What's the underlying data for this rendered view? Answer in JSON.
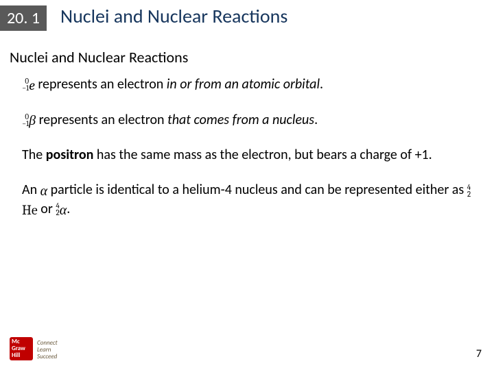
{
  "section": {
    "number": "20. 1",
    "title": "Nuclei and Nuclear Reactions"
  },
  "subheading": "Nuclei and Nuclear Reactions",
  "particles": {
    "electron_orbital": {
      "mass": "0",
      "charge": "−1",
      "symbol": "e",
      "lead": " represents an electron ",
      "tail_italic": "in or from an atomic orbital",
      "period": "."
    },
    "beta": {
      "mass": "0",
      "charge": "−1",
      "symbol": "β",
      "lead": " represents an electron ",
      "tail_italic": "that comes from a nucleus",
      "period": "."
    },
    "positron": {
      "pre": "The ",
      "bold": "positron",
      "post": " has the same mass as the electron, but bears a charge of +1."
    },
    "alpha": {
      "pre": "An ",
      "sym": "α",
      "mid": " particle is identical to a helium-4 nucleus and can be represented either as ",
      "he": {
        "mass": "4",
        "charge": "2",
        "symbol": "He"
      },
      "or": " or ",
      "al": {
        "mass": "4",
        "charge": "2",
        "symbol": "α"
      },
      "period": "."
    }
  },
  "logo": {
    "brand_line1": "Mc",
    "brand_line2": "Graw",
    "brand_line3": "Hill",
    "tag1": "Connect",
    "tag2": "Learn",
    "tag3": "Succeed"
  },
  "page_number": "7",
  "colors": {
    "badge_bg": "#595959",
    "title_color": "#17365d",
    "logo_red": "#c00000"
  }
}
